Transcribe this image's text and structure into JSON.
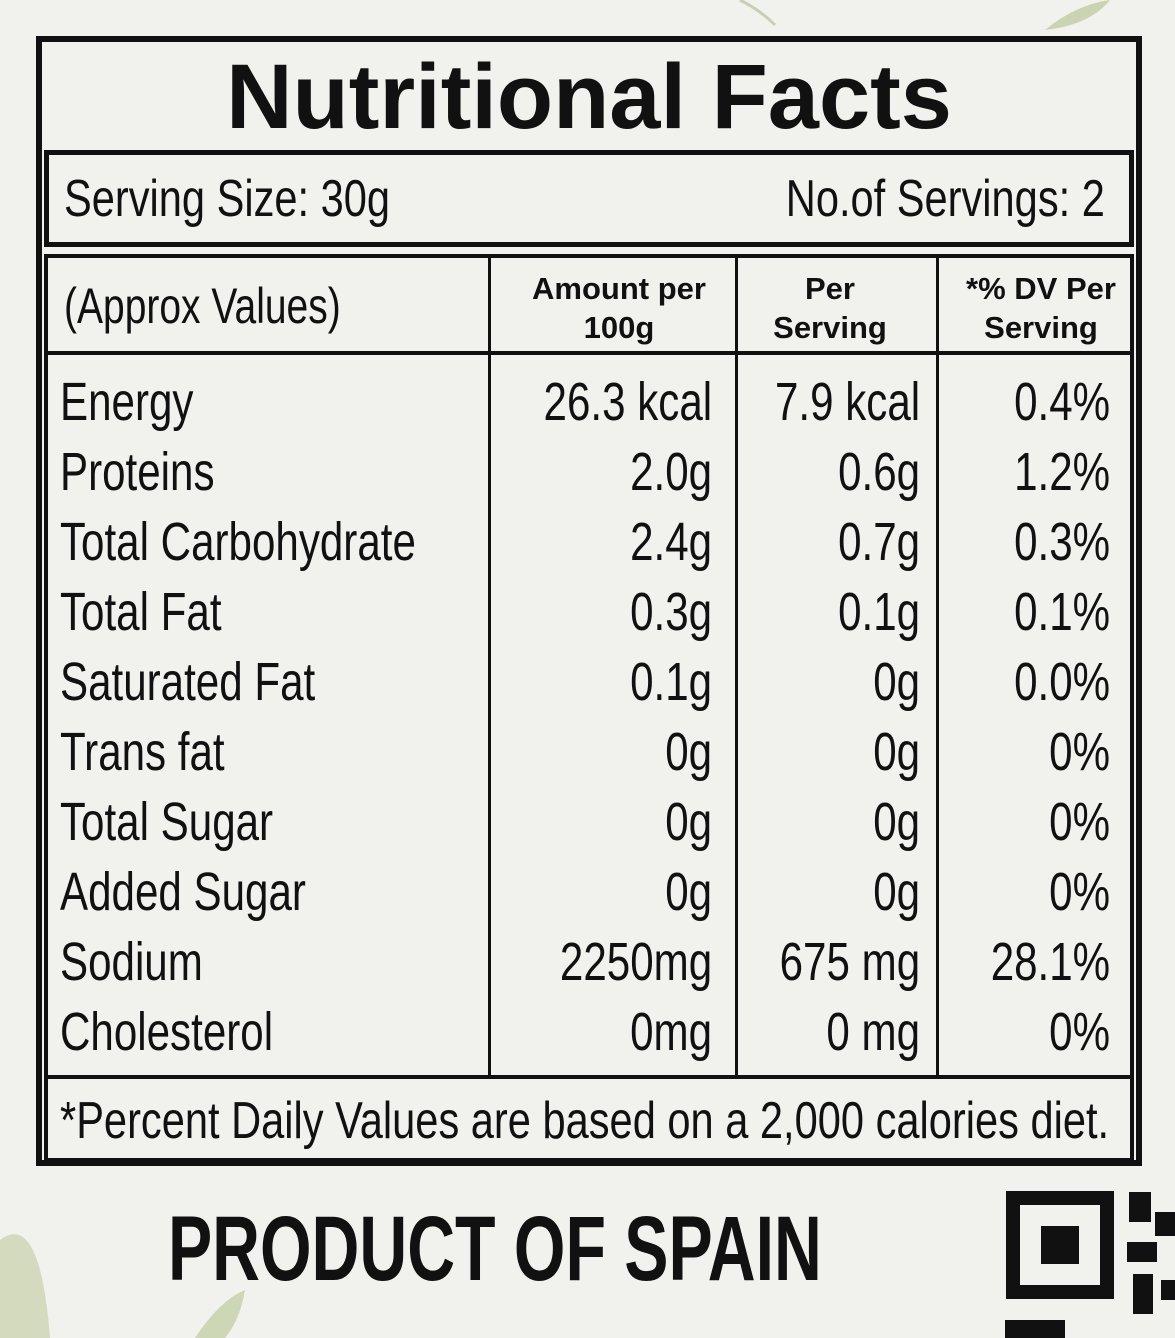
{
  "title": "Nutritional Facts",
  "serving_size": "Serving Size: 30g",
  "servings": "No.of Servings: 2",
  "table": {
    "header": [
      "(Approx Values)",
      "Amount per 100g",
      "Per Serving",
      "*% DV Per Serving"
    ],
    "rows": [
      [
        "Energy",
        "26.3 kcal",
        "7.9 kcal",
        "0.4%"
      ],
      [
        "Proteins",
        "2.0g",
        "0.6g",
        "1.2%"
      ],
      [
        "Total Carbohydrate",
        "2.4g",
        "0.7g",
        "0.3%"
      ],
      [
        "Total Fat",
        "0.3g",
        "0.1g",
        "0.1%"
      ],
      [
        "Saturated Fat",
        "0.1g",
        "0g",
        "0.0%"
      ],
      [
        "Trans fat",
        "0g",
        "0g",
        "0%"
      ],
      [
        "Total Sugar",
        "0g",
        "0g",
        "0%"
      ],
      [
        "Added Sugar",
        "0g",
        "0g",
        "0%"
      ],
      [
        "Sodium",
        "2250mg",
        "675 mg",
        "28.1%"
      ],
      [
        "Cholesterol",
        "0mg",
        "0 mg",
        "0%"
      ]
    ]
  },
  "footnote": "*Percent Daily Values are based on a 2,000 calories diet.",
  "origin": "PRODUCT OF SPAIN"
}
